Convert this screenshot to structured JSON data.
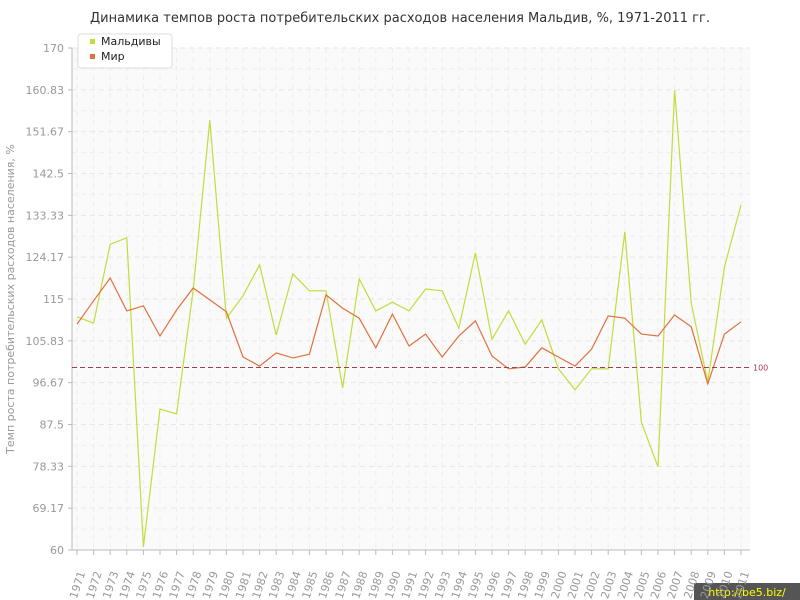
{
  "chart_data": {
    "type": "line",
    "title": "Динамика темпов роста потребительских расходов населения Мальдив, %, 1971-2011 гг.",
    "y_label": "Темп роста потребительских расходов населения, %",
    "categories": [
      "1971",
      "1972",
      "1973",
      "1974",
      "1975",
      "1976",
      "1977",
      "1978",
      "1979",
      "1980",
      "1981",
      "1982",
      "1983",
      "1984",
      "1985",
      "1986",
      "1987",
      "1988",
      "1989",
      "1990",
      "1991",
      "1992",
      "1993",
      "1994",
      "1995",
      "1996",
      "1997",
      "1998",
      "1999",
      "2000",
      "2001",
      "2002",
      "2003",
      "2004",
      "2005",
      "2006",
      "2007",
      "2008",
      "2009",
      "2010",
      "2011"
    ],
    "series": [
      {
        "name": "Мальдивы",
        "color": "#c2dc3c",
        "values": [
          111.1,
          109.7,
          127,
          128.4,
          60.7,
          90.9,
          89.8,
          117,
          154.2,
          110.8,
          115.7,
          122.5,
          107.1,
          120.5,
          116.8,
          116.8,
          95.5,
          119.4,
          112.4,
          114.3,
          112.4,
          117.2,
          116.8,
          108.6,
          125.1,
          106.2,
          112.4,
          105.1,
          110.4,
          99.7,
          95.1,
          99.7,
          99.7,
          129.7,
          88,
          78.2,
          160.8,
          114.1,
          96.8,
          122,
          135.6
        ]
      },
      {
        "name": "Мир",
        "color": "#e0713f",
        "values": [
          109.5,
          114.6,
          119.6,
          112.4,
          113.5,
          106.9,
          112.6,
          117.4,
          114.8,
          112.2,
          102.3,
          100.3,
          103.2,
          102.1,
          102.9,
          115.9,
          113,
          110.8,
          104.3,
          111.7,
          104.7,
          107.3,
          102.3,
          106.9,
          110.2,
          102.5,
          99.7,
          100.1,
          104.3,
          102.3,
          100.3,
          104,
          111.3,
          110.8,
          107.3,
          106.9,
          111.5,
          108.9,
          96.4,
          107.3,
          110
        ]
      }
    ],
    "ylim": [
      60,
      170
    ],
    "yticks": [
      60,
      69.17,
      78.33,
      87.5,
      96.67,
      105.83,
      115,
      124.17,
      133.33,
      142.5,
      151.67,
      160.83,
      170
    ],
    "reference_line": {
      "value": 100,
      "color": "#a0404a"
    },
    "grid": true,
    "legend": "top-left",
    "watermark": "http://be5.biz/"
  }
}
